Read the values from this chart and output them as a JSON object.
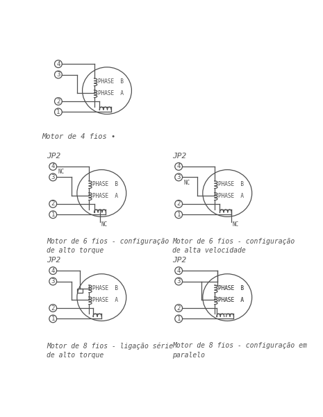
{
  "line_color": "#505050",
  "bg_color": "#ffffff",
  "title_4wire": "Motor de 4 fios •",
  "title_6t": "Motor de 6 fios - configuração\nde alto torque",
  "title_6s": "Motor de 6 fios - configuração\nde alta velocidade",
  "title_8t": "Motor de 8 fios - ligação série\nde alto torque",
  "title_8p": "Motor de 8 fios - configuração em\nparalelo"
}
